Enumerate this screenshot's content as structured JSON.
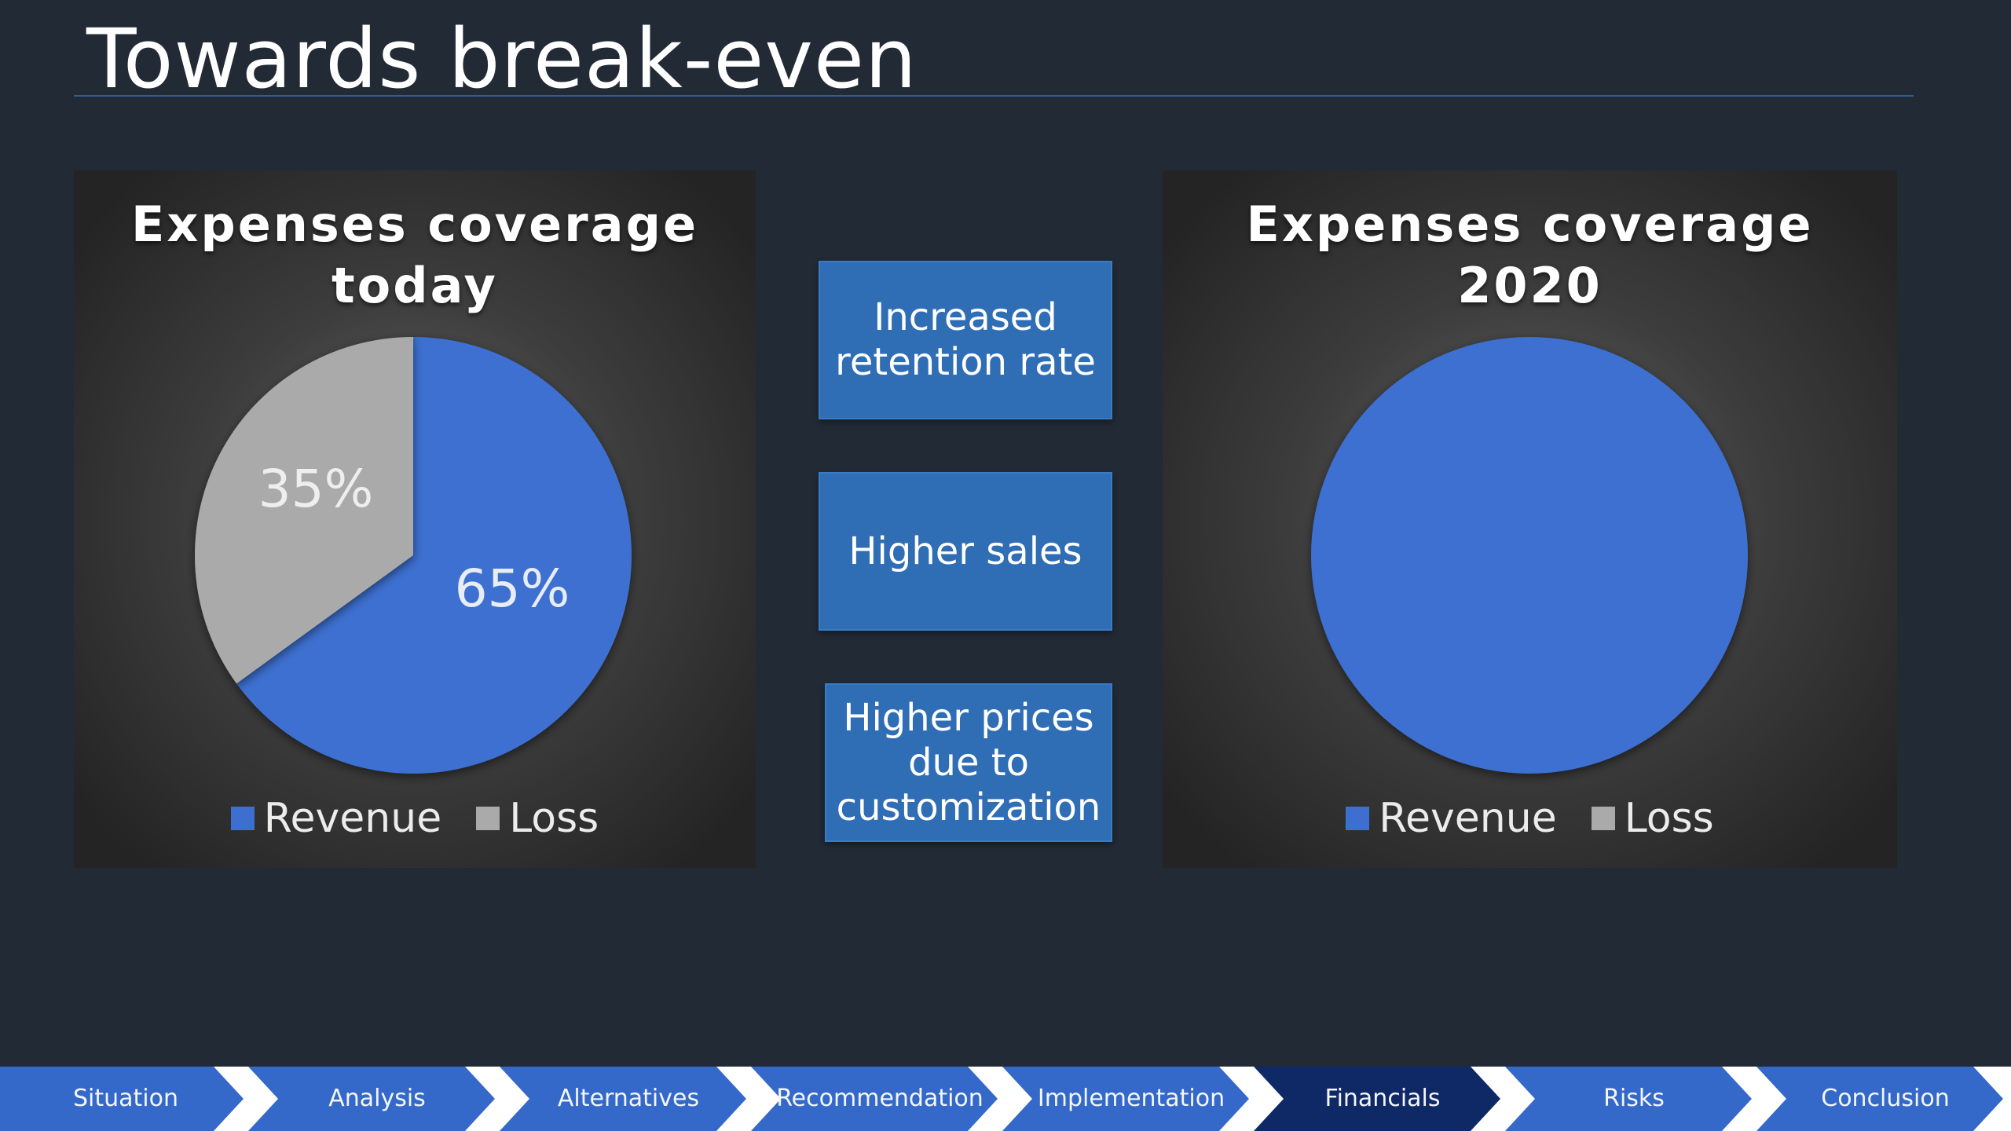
{
  "slide": {
    "title": "Towards break-even"
  },
  "drivers": [
    {
      "label": "Increased retention rate",
      "lines": [
        "Increased",
        "retention rate"
      ]
    },
    {
      "label": "Higher sales",
      "lines": [
        "Higher sales"
      ]
    },
    {
      "label": "Higher prices due to customization",
      "lines": [
        "Higher prices",
        "due to",
        "customization"
      ]
    }
  ],
  "colors": {
    "revenue": "#3d6fd0",
    "loss": "#aaaaaa",
    "nav_default": "#3468c9",
    "nav_active": "#0f2866",
    "title_rule": "#2e5d97",
    "driver_box": "#2f6db5"
  },
  "chart_data": [
    {
      "type": "pie",
      "title": "Expenses coverage today",
      "title_lines": [
        "Expenses coverage",
        "today"
      ],
      "categories": [
        "Revenue",
        "Loss"
      ],
      "values": [
        65,
        35
      ],
      "labels": [
        "65%",
        "35%"
      ],
      "legend": [
        "Revenue",
        "Loss"
      ],
      "legend_position": "bottom"
    },
    {
      "type": "pie",
      "title": "Expenses coverage 2020",
      "title_lines": [
        "Expenses coverage",
        "2020"
      ],
      "categories": [
        "Revenue",
        "Loss"
      ],
      "values": [
        100,
        0
      ],
      "labels": [],
      "legend": [
        "Revenue",
        "Loss"
      ],
      "legend_position": "bottom"
    }
  ],
  "nav": {
    "items": [
      "Situation",
      "Analysis",
      "Alternatives",
      "Recommendation",
      "Implementation",
      "Financials",
      "Risks",
      "Conclusion"
    ],
    "active": "Financials"
  }
}
